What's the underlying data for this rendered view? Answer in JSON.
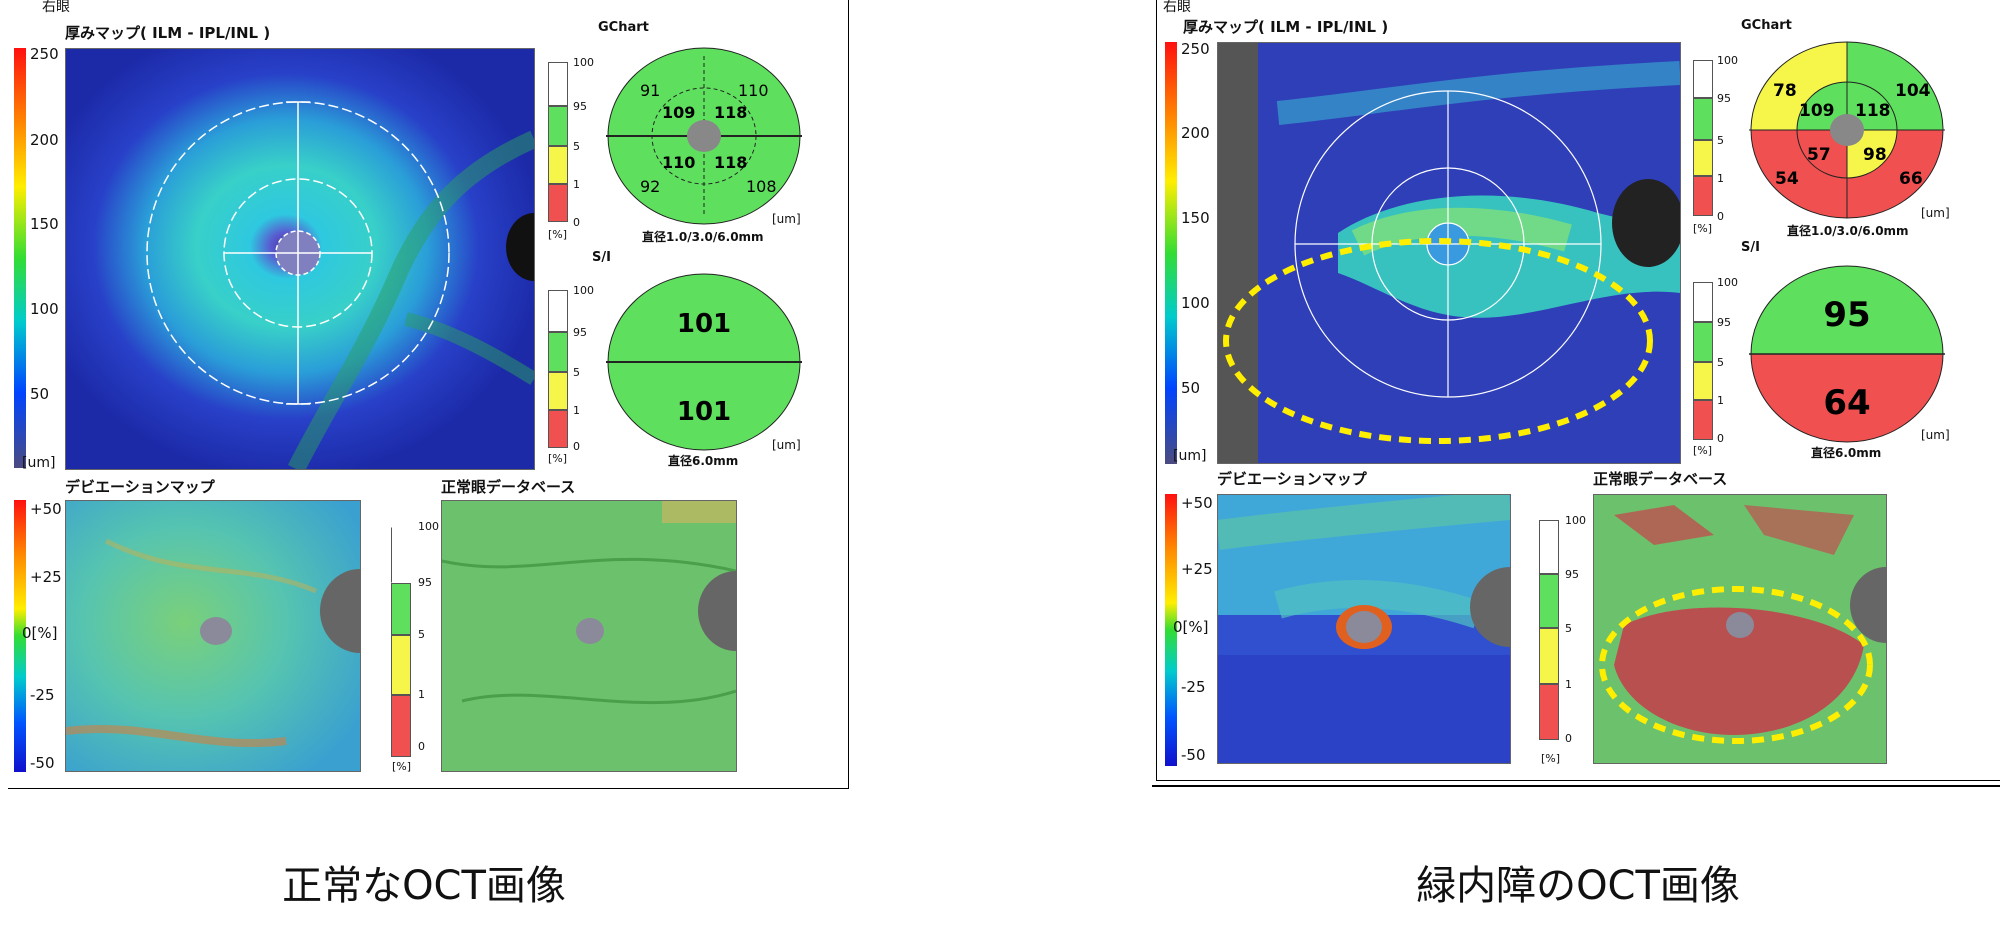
{
  "left_panel": {
    "eye_label": "右眼",
    "thickness_map_title": "厚みマップ( ILM - IPL/INL )",
    "thickness_scale": [
      "250",
      "200",
      "150",
      "100",
      "50",
      "[um]"
    ],
    "gchart_title": "GChart",
    "gchart_values": {
      "outer_tl": "91",
      "outer_tr": "110",
      "outer_bl": "92",
      "outer_br": "108",
      "inner_tl": "109",
      "inner_tr": "118",
      "inner_bl": "110",
      "inner_br": "118"
    },
    "gchart_caption": "直径1.0/3.0/6.0mm",
    "gchart_unit": "[um]",
    "si_title": "S/I",
    "si_values": {
      "superior": "101",
      "inferior": "101"
    },
    "si_caption": "直径6.0mm",
    "si_unit": "[um]",
    "pct_scale": [
      "100",
      "95",
      "5",
      "1",
      "0",
      "[%]"
    ],
    "deviation_map_title": "デビエーションマップ",
    "deviation_scale": [
      "+50",
      "+25",
      "0[%]",
      "-25",
      "-50"
    ],
    "normative_db_title": "正常眼データベース",
    "caption": "正常なOCT画像"
  },
  "right_panel": {
    "eye_label": "右眼",
    "thickness_map_title": "厚みマップ( ILM - IPL/INL )",
    "thickness_scale": [
      "250",
      "200",
      "150",
      "100",
      "50",
      "[um]"
    ],
    "gchart_title": "GChart",
    "gchart_values": {
      "outer_tl": "78",
      "outer_tr": "104",
      "outer_bl": "54",
      "outer_br": "66",
      "inner_tl": "109",
      "inner_tr": "118",
      "inner_bl": "57",
      "inner_br": "98"
    },
    "gchart_caption": "直径1.0/3.0/6.0mm",
    "gchart_unit": "[um]",
    "si_title": "S/I",
    "si_values": {
      "superior": "95",
      "inferior": "64"
    },
    "si_caption": "直径6.0mm",
    "si_unit": "[um]",
    "pct_scale": [
      "100",
      "95",
      "5",
      "1",
      "0",
      "[%]"
    ],
    "deviation_map_title": "デビエーションマップ",
    "deviation_scale": [
      "+50",
      "+25",
      "0[%]",
      "-25",
      "-50"
    ],
    "normative_db_title": "正常眼データベース",
    "caption": "緑内障のOCT画像"
  },
  "colors": {
    "normal_green": "#5ee05e",
    "borderline_yellow": "#f5f54a",
    "abnormal_red": "#f05050",
    "highlight_yellow": "#ffee00"
  }
}
